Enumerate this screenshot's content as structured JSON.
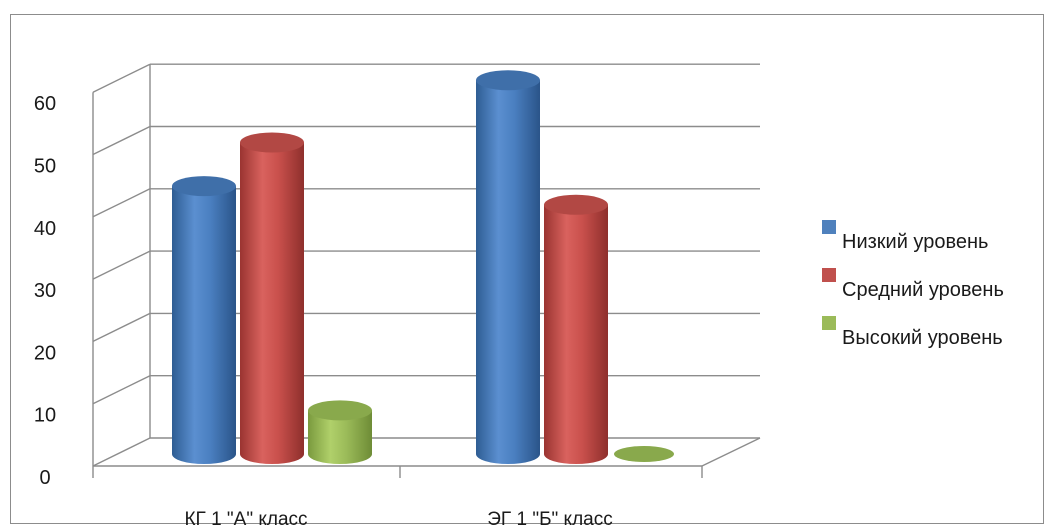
{
  "chart_data": {
    "type": "bar",
    "categories": [
      "КГ  1 \"А\" класс",
      "ЭГ 1  \"Б\" класс"
    ],
    "series": [
      {
        "name": "Низкий уровень",
        "values": [
          43,
          60
        ],
        "color": "#4f81bd"
      },
      {
        "name": "Средний уровень",
        "values": [
          50,
          40
        ],
        "color": "#c0504d"
      },
      {
        "name": "Высокий уровень",
        "values": [
          7,
          0
        ],
        "color": "#9bbb59"
      }
    ],
    "yticks": [
      "0",
      "10",
      "20",
      "30",
      "40",
      "50",
      "60"
    ],
    "ylim": [
      0,
      60
    ],
    "grid": true,
    "legend": "right",
    "style": "3d-cylinder"
  }
}
